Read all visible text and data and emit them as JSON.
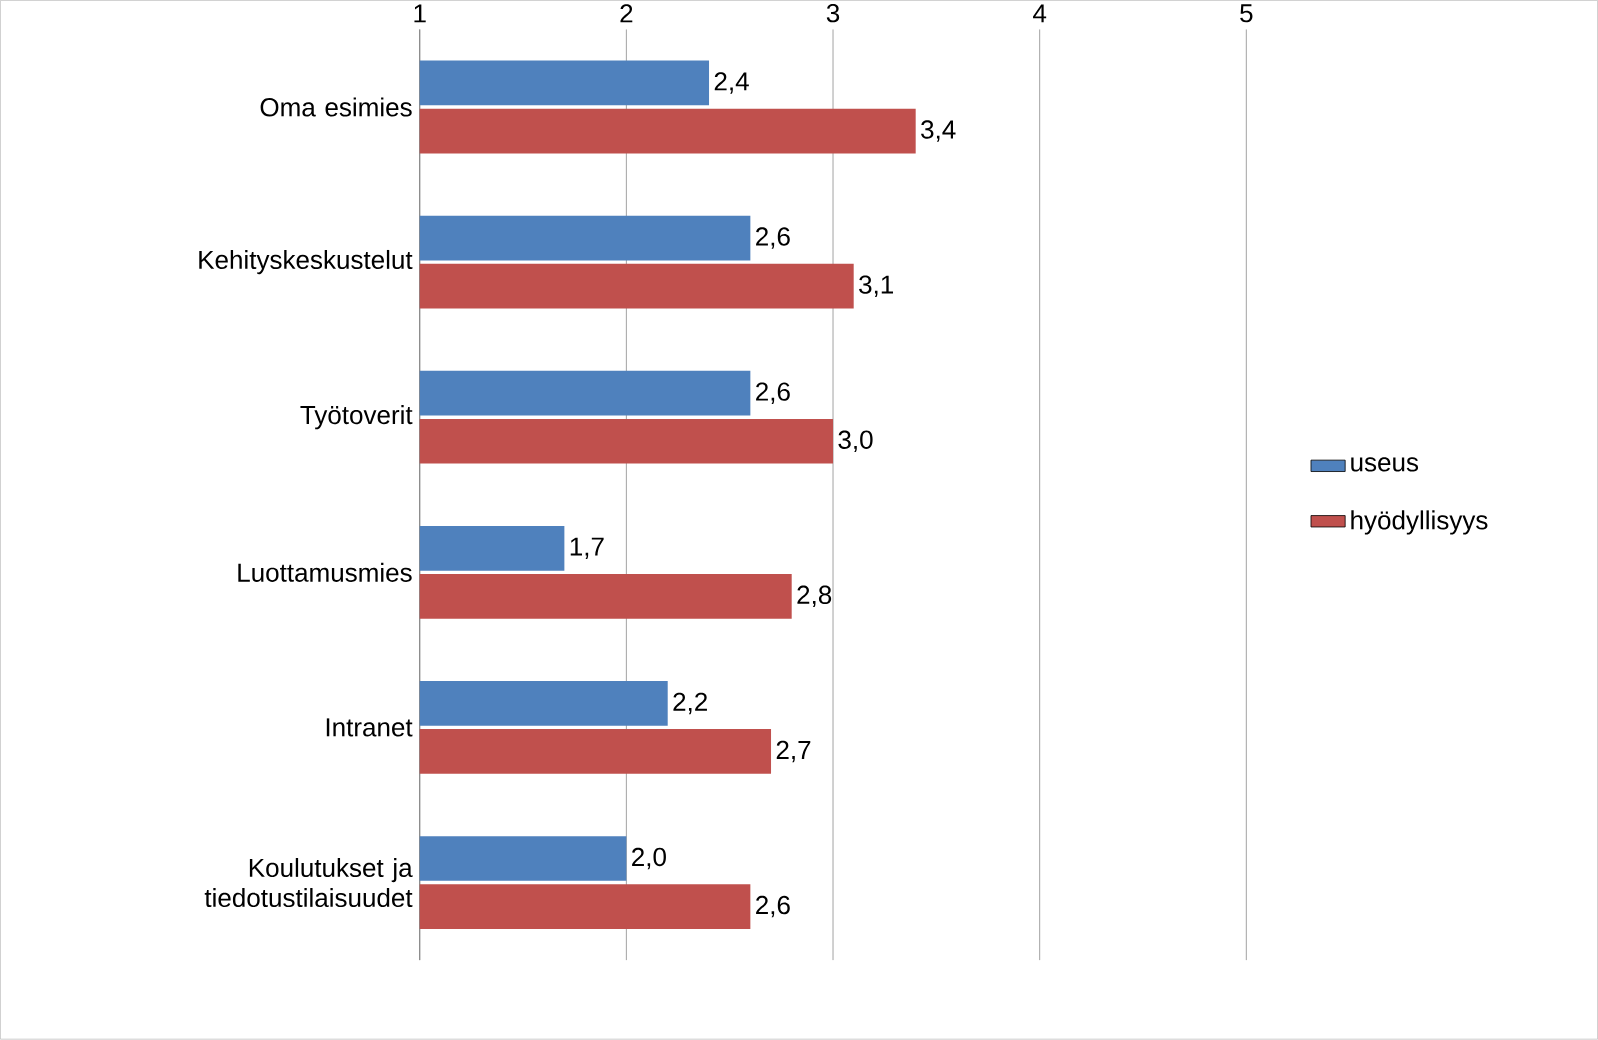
{
  "chart_data": {
    "type": "bar",
    "orientation": "horizontal",
    "categories": [
      "Oma esimies",
      "Kehityskeskustelut",
      "Työtoverit",
      "Luottamusmies",
      "Intranet",
      "Koulutukset ja tiedotustilaisuudet"
    ],
    "series": [
      {
        "name": "useus",
        "color": "#4f81bd",
        "values": [
          2.4,
          2.6,
          2.6,
          1.7,
          2.2,
          2.0
        ],
        "value_labels": [
          "2,4",
          "2,6",
          "2,6",
          "1,7",
          "2,2",
          "2,0"
        ]
      },
      {
        "name": "hyödyllisyys",
        "color": "#c0504d",
        "values": [
          3.4,
          3.1,
          3.0,
          2.8,
          2.7,
          2.6
        ],
        "value_labels": [
          "3,4",
          "3,1",
          "3,0",
          "2,8",
          "2,7",
          "2,6"
        ]
      }
    ],
    "xlim": [
      1,
      5
    ],
    "xticks": [
      1,
      2,
      3,
      4,
      5
    ],
    "grid": "x",
    "legend": "right"
  }
}
